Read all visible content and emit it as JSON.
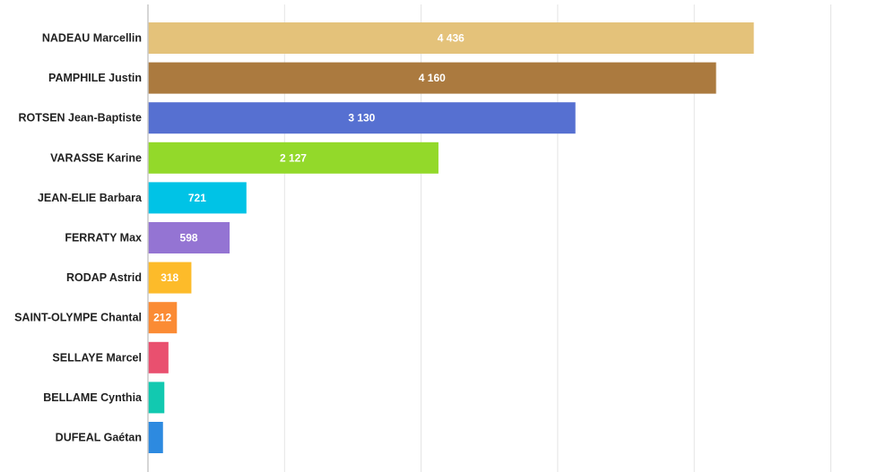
{
  "chart_data": {
    "type": "bar",
    "orientation": "horizontal",
    "categories": [
      "NADEAU Marcellin",
      "PAMPHILE Justin",
      "ROTSEN Jean-Baptiste",
      "VARASSE Karine",
      "JEAN-ELIE Barbara",
      "FERRATY Max",
      "RODAP Astrid",
      "SAINT-OLYMPE Chantal",
      "SELLAYE Marcel",
      "BELLAME Cynthia",
      "DUFEAL Gaétan"
    ],
    "values": [
      4436,
      4160,
      3130,
      2127,
      721,
      598,
      318,
      212,
      150,
      120,
      110
    ],
    "data_labels": [
      "4 436",
      "4 160",
      "3 130",
      "2 127",
      "721",
      "598",
      "318",
      "212",
      "",
      "",
      ""
    ],
    "colors": [
      "#e4c27a",
      "#ab7a3f",
      "#5670d1",
      "#93d92a",
      "#00c3e6",
      "#9474d3",
      "#fdbb2a",
      "#fb8b34",
      "#e9506f",
      "#12c9b0",
      "#2d8ae0"
    ],
    "xlim": [
      0,
      5400
    ],
    "grid": true,
    "legend": "none",
    "title": "",
    "xlabel": "",
    "ylabel": ""
  }
}
